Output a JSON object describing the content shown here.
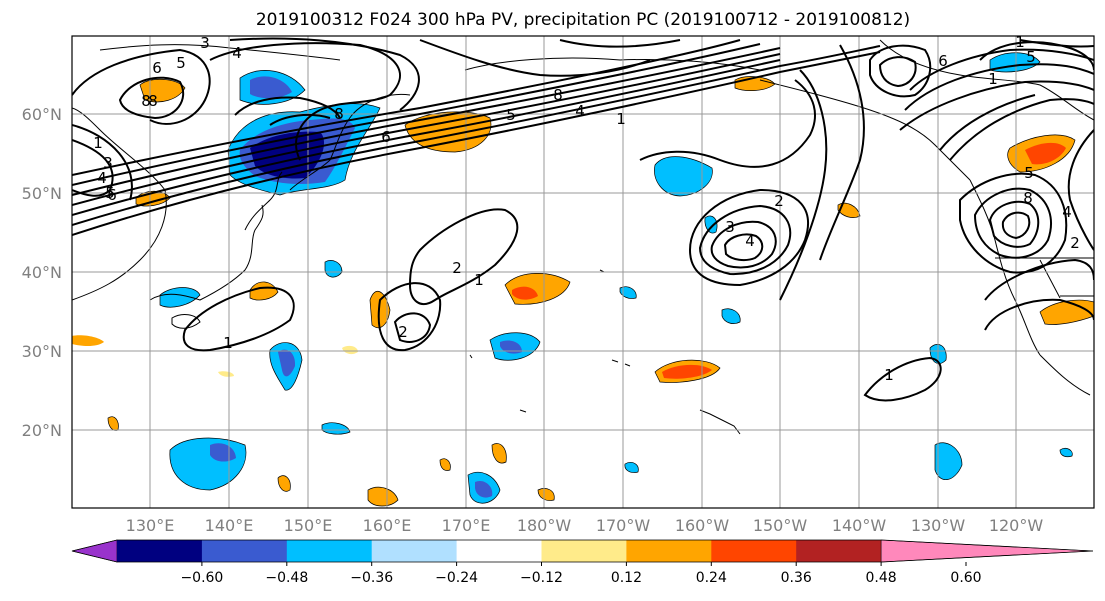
{
  "title": "2019100312 F024 300 hPa PV, precipitation PC (2019100712 - 2019100812)",
  "map": {
    "lat_ticks": [
      "20°N",
      "30°N",
      "40°N",
      "50°N",
      "60°N"
    ],
    "lon_ticks": [
      "130°E",
      "140°E",
      "150°E",
      "160°E",
      "170°E",
      "180°W",
      "170°W",
      "160°W",
      "150°W",
      "140°W",
      "130°W",
      "120°W"
    ],
    "grid": true
  },
  "contours": {
    "variable": "300 hPa PV",
    "labels": [
      {
        "text": "3"
      },
      {
        "text": "4"
      },
      {
        "text": "5"
      },
      {
        "text": "6"
      },
      {
        "text": "8"
      },
      {
        "text": "1"
      },
      {
        "text": "3"
      },
      {
        "text": "4"
      },
      {
        "text": "5"
      },
      {
        "text": "6"
      },
      {
        "text": "8"
      },
      {
        "text": "2"
      },
      {
        "text": "1"
      },
      {
        "text": "2"
      },
      {
        "text": "1"
      },
      {
        "text": "8"
      },
      {
        "text": "4"
      },
      {
        "text": "5"
      },
      {
        "text": "1"
      },
      {
        "text": "2"
      },
      {
        "text": "3"
      },
      {
        "text": "4"
      },
      {
        "text": "6"
      },
      {
        "text": "1"
      },
      {
        "text": "5"
      },
      {
        "text": "1"
      },
      {
        "text": "5"
      },
      {
        "text": "8"
      },
      {
        "text": "4"
      },
      {
        "text": "2"
      },
      {
        "text": "1"
      },
      {
        "text": "8"
      },
      {
        "text": "6"
      }
    ]
  },
  "colorbar": {
    "tick_labels": [
      "−0.60",
      "−0.48",
      "−0.36",
      "−0.24",
      "−0.12",
      "0.12",
      "0.24",
      "0.36",
      "0.48",
      "0.60"
    ],
    "colors": [
      "#9933cc",
      "#000080",
      "#3a5bd0",
      "#00bfff",
      "#b0e0ff",
      "#ffffff",
      "#ffeb8a",
      "#ffa500",
      "#ff4500",
      "#b22222",
      "#ff88bb"
    ]
  }
}
